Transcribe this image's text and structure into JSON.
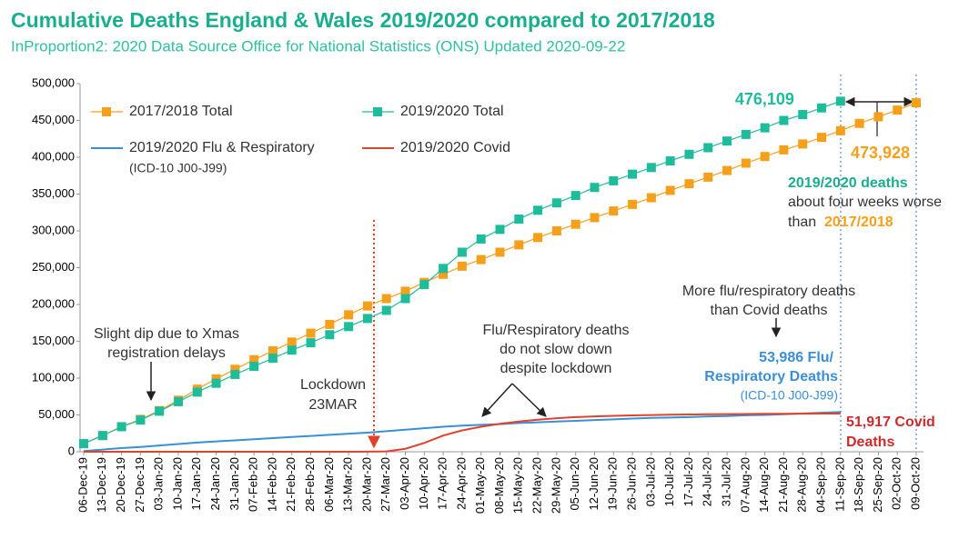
{
  "chart_data": {
    "type": "line",
    "title": "Cumulative Deaths England & Wales 2019/2020 compared to 2017/2018",
    "subtitle": "InProportion2: 2020 Data Source Office for National Statistics (ONS) Updated 2020-09-22",
    "categories": [
      "06-Dec-19",
      "13-Dec-19",
      "20-Dec-19",
      "27-Dec-19",
      "03-Jan-20",
      "10-Jan-20",
      "17-Jan-20",
      "24-Jan-20",
      "31-Jan-20",
      "07-Feb-20",
      "14-Feb-20",
      "21-Feb-20",
      "28-Feb-20",
      "06-Mar-20",
      "13-Mar-20",
      "20-Mar-20",
      "27-Mar-20",
      "03-Apr-20",
      "10-Apr-20",
      "17-Apr-20",
      "24-Apr-20",
      "01-May-20",
      "08-May-20",
      "15-May-20",
      "22-May-20",
      "29-May-20",
      "05-Jun-20",
      "12-Jun-20",
      "19-Jun-20",
      "26-Jun-20",
      "03-Jul-20",
      "10-Jul-20",
      "17-Jul-20",
      "24-Jul-20",
      "31-Jul-20",
      "07-Aug-20",
      "14-Aug-20",
      "21-Aug-20",
      "28-Aug-20",
      "04-Sep-20",
      "11-Sep-20",
      "18-Sep-20",
      "25-Sep-20",
      "02-Oct-20",
      "09-Oct-20"
    ],
    "series": [
      {
        "name": "2017/2018 Total",
        "color": "#f5a01a",
        "markers": true,
        "values": [
          11000,
          22000,
          34000,
          44000,
          56000,
          70000,
          85000,
          99000,
          112000,
          125000,
          137000,
          149000,
          161000,
          173000,
          186000,
          198000,
          208000,
          218000,
          230000,
          241000,
          252000,
          261000,
          271000,
          281000,
          291000,
          300000,
          309000,
          318000,
          327000,
          336000,
          345000,
          355000,
          364000,
          373000,
          382000,
          392000,
          401000,
          410000,
          418000,
          427000,
          436000,
          446000,
          455000,
          464000,
          473928
        ],
        "value_labels": [
          null,
          null,
          null,
          null,
          null,
          null,
          null,
          null,
          null,
          null,
          null,
          null,
          null,
          null,
          null,
          null,
          null,
          null,
          null,
          null,
          null,
          null,
          null,
          null,
          null,
          null,
          null,
          null,
          null,
          null,
          null,
          null,
          null,
          null,
          null,
          null,
          null,
          null,
          null,
          null,
          null,
          null,
          null,
          null,
          "473,928"
        ]
      },
      {
        "name": "2019/2020 Total",
        "color": "#1fbc9c",
        "markers": true,
        "values": [
          11000,
          22000,
          34000,
          43000,
          55000,
          68000,
          81000,
          93000,
          105000,
          116000,
          127000,
          138000,
          148000,
          159000,
          170000,
          181000,
          192000,
          208000,
          227000,
          249000,
          271000,
          289000,
          302000,
          316000,
          328000,
          338000,
          348000,
          359000,
          368000,
          377000,
          386000,
          395000,
          404000,
          413000,
          422000,
          431000,
          440000,
          450000,
          458000,
          467000,
          476109,
          null,
          null,
          null,
          null
        ],
        "value_labels": [
          null,
          null,
          null,
          null,
          null,
          null,
          null,
          null,
          null,
          null,
          null,
          null,
          null,
          null,
          null,
          null,
          null,
          null,
          null,
          null,
          null,
          null,
          null,
          null,
          null,
          null,
          null,
          null,
          null,
          null,
          null,
          null,
          null,
          null,
          null,
          null,
          null,
          null,
          null,
          null,
          "476,109",
          null,
          null,
          null,
          null
        ]
      },
      {
        "name": "2019/2020 Flu & Respiratory",
        "note": "(ICD-10 J00-J99)",
        "color": "#3a8fd6",
        "markers": false,
        "values": [
          1000,
          3000,
          5000,
          6500,
          8500,
          10500,
          12500,
          14000,
          15500,
          17000,
          18500,
          20000,
          21500,
          23000,
          24500,
          26000,
          28000,
          30000,
          32000,
          34000,
          35500,
          36500,
          37500,
          39000,
          40000,
          41000,
          42000,
          43000,
          44000,
          45000,
          46000,
          46500,
          47000,
          48000,
          48500,
          49500,
          50000,
          51000,
          52000,
          53000,
          53986,
          null,
          null,
          null,
          null
        ]
      },
      {
        "name": "2019/2020 Covid",
        "color": "#e0422c",
        "markers": false,
        "values": [
          0,
          0,
          0,
          0,
          0,
          0,
          0,
          0,
          0,
          0,
          0,
          0,
          0,
          0,
          0,
          100,
          500,
          4000,
          12000,
          22000,
          29000,
          34000,
          38000,
          41000,
          43500,
          45500,
          47000,
          48000,
          48800,
          49400,
          49900,
          50300,
          50600,
          50900,
          51100,
          51300,
          51500,
          51600,
          51700,
          51800,
          51917,
          null,
          null,
          null,
          null
        ]
      }
    ],
    "ylim": [
      0,
      500000
    ],
    "yticks": [
      0,
      {
        "value": 50000,
        "label": "50,000"
      },
      {
        "value": 100000,
        "label": "100,000"
      },
      {
        "value": 150000,
        "label": "150,000"
      },
      {
        "value": 200000,
        "label": "200,000"
      },
      {
        "value": 250000,
        "label": "250,000"
      },
      {
        "value": 300000,
        "label": "300,000"
      },
      {
        "value": 350000,
        "label": "350,000"
      },
      {
        "value": 400000,
        "label": "400,000"
      },
      {
        "value": 450000,
        "label": "450,000"
      },
      {
        "value": 500000,
        "label": "500,000"
      }
    ],
    "grid": false,
    "annotations": [
      [
        "Slight dip due to Xmas",
        "registration delays"
      ],
      [
        "Lockdown",
        "23MAR"
      ],
      [
        "Flu/Respiratory deaths",
        "do not slow down",
        "despite lockdown"
      ],
      [
        "More flu/respiratory deaths",
        "than Covid deaths"
      ],
      [
        "2019/2020 deaths",
        "about four weeks worse",
        "than",
        "2017/2018"
      ],
      [
        "53,986 Flu/",
        "Respiratory Deaths",
        "(ICD-10 J00-J99)"
      ],
      [
        "51,917 Covid",
        "Deaths"
      ]
    ]
  }
}
